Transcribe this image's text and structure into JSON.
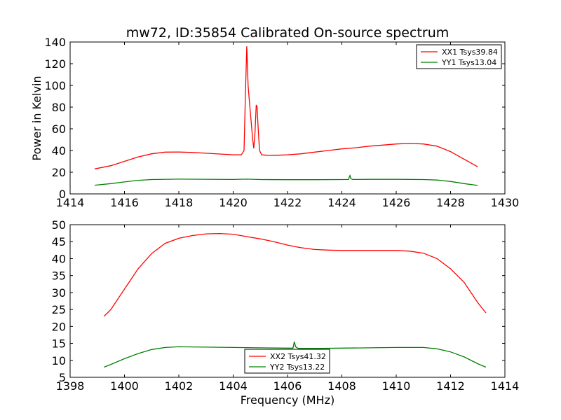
{
  "title": "mw72, ID:35854 Calibrated On-source spectrum",
  "colors": {
    "red": "#ff0000",
    "green": "#008000"
  },
  "chart_data": [
    {
      "type": "line",
      "ylabel": "Power in Kelvin",
      "xlabel": "",
      "xlim": [
        1414,
        1430
      ],
      "ylim": [
        0,
        140
      ],
      "xticks": [
        1414,
        1416,
        1418,
        1420,
        1422,
        1424,
        1426,
        1428,
        1430
      ],
      "yticks": [
        0,
        20,
        40,
        60,
        80,
        100,
        120,
        140
      ],
      "legend_position": "top-right",
      "series": [
        {
          "name": "XX1 Tsys39.84",
          "color": "red",
          "points": [
            [
              1414.9,
              23
            ],
            [
              1415.5,
              26
            ],
            [
              1416,
              30
            ],
            [
              1416.5,
              34
            ],
            [
              1417,
              37
            ],
            [
              1417.5,
              38.5
            ],
            [
              1418,
              38.6
            ],
            [
              1418.5,
              38.2
            ],
            [
              1419,
              37.5
            ],
            [
              1419.5,
              36.8
            ],
            [
              1420,
              36
            ],
            [
              1420.3,
              36
            ],
            [
              1420.4,
              40
            ],
            [
              1420.45,
              90
            ],
            [
              1420.5,
              136
            ],
            [
              1420.55,
              100
            ],
            [
              1420.6,
              85
            ],
            [
              1420.65,
              70
            ],
            [
              1420.72,
              50
            ],
            [
              1420.76,
              42
            ],
            [
              1420.8,
              55
            ],
            [
              1420.85,
              82
            ],
            [
              1420.88,
              80
            ],
            [
              1420.92,
              60
            ],
            [
              1420.97,
              40
            ],
            [
              1421.05,
              36
            ],
            [
              1421.3,
              35.5
            ],
            [
              1421.6,
              35.6
            ],
            [
              1422,
              36
            ],
            [
              1422.5,
              37
            ],
            [
              1423,
              38.5
            ],
            [
              1423.5,
              40
            ],
            [
              1424,
              41.5
            ],
            [
              1424.5,
              42.5
            ],
            [
              1425,
              44
            ],
            [
              1425.5,
              45
            ],
            [
              1426,
              46
            ],
            [
              1426.5,
              46.5
            ],
            [
              1427,
              46
            ],
            [
              1427.5,
              44
            ],
            [
              1428,
              39
            ],
            [
              1428.5,
              32
            ],
            [
              1429,
              25
            ]
          ]
        },
        {
          "name": "YY1 Tsys13.04",
          "color": "green",
          "points": [
            [
              1414.9,
              8
            ],
            [
              1415.5,
              9.5
            ],
            [
              1416,
              11
            ],
            [
              1416.5,
              12.5
            ],
            [
              1417,
              13.2
            ],
            [
              1418,
              13.6
            ],
            [
              1419,
              13.5
            ],
            [
              1420,
              13.3
            ],
            [
              1420.5,
              13.6
            ],
            [
              1421,
              13.2
            ],
            [
              1422,
              13.1
            ],
            [
              1423,
              13.1
            ],
            [
              1424,
              13.2
            ],
            [
              1424.25,
              13.3
            ],
            [
              1424.28,
              16
            ],
            [
              1424.3,
              17
            ],
            [
              1424.33,
              14
            ],
            [
              1424.4,
              13.3
            ],
            [
              1425,
              13.4
            ],
            [
              1426,
              13.4
            ],
            [
              1427,
              13.2
            ],
            [
              1427.5,
              12.8
            ],
            [
              1428,
              11.5
            ],
            [
              1428.5,
              9.5
            ],
            [
              1429,
              7.8
            ]
          ]
        }
      ]
    },
    {
      "type": "line",
      "xlabel": "Frequency (MHz)",
      "ylabel": "",
      "xlim": [
        1398,
        1414
      ],
      "ylim": [
        5,
        50
      ],
      "xticks": [
        1398,
        1400,
        1402,
        1404,
        1406,
        1408,
        1410,
        1412,
        1414
      ],
      "yticks": [
        5,
        10,
        15,
        20,
        25,
        30,
        35,
        40,
        45,
        50
      ],
      "legend_position": "lower-center",
      "series": [
        {
          "name": "XX2 Tsys41.32",
          "color": "red",
          "points": [
            [
              1399.25,
              23
            ],
            [
              1399.5,
              25
            ],
            [
              1400,
              31
            ],
            [
              1400.5,
              37
            ],
            [
              1401,
              41.5
            ],
            [
              1401.5,
              44.5
            ],
            [
              1402,
              46
            ],
            [
              1402.5,
              46.8
            ],
            [
              1403,
              47.3
            ],
            [
              1403.5,
              47.4
            ],
            [
              1404,
              47.2
            ],
            [
              1404.5,
              46.5
            ],
            [
              1405,
              45.8
            ],
            [
              1405.5,
              45
            ],
            [
              1406,
              44
            ],
            [
              1406.3,
              43.5
            ],
            [
              1406.5,
              43.2
            ],
            [
              1407,
              42.7
            ],
            [
              1407.5,
              42.5
            ],
            [
              1408,
              42.4
            ],
            [
              1409,
              42.4
            ],
            [
              1410,
              42.4
            ],
            [
              1410.5,
              42.2
            ],
            [
              1411,
              41.6
            ],
            [
              1411.5,
              40
            ],
            [
              1412,
              37
            ],
            [
              1412.5,
              33
            ],
            [
              1413,
              27
            ],
            [
              1413.3,
              24
            ]
          ]
        },
        {
          "name": "YY2 Tsys13.22",
          "color": "green",
          "points": [
            [
              1399.25,
              8
            ],
            [
              1399.5,
              8.8
            ],
            [
              1400,
              10.5
            ],
            [
              1400.5,
              12
            ],
            [
              1401,
              13.2
            ],
            [
              1401.5,
              13.8
            ],
            [
              1402,
              14
            ],
            [
              1403,
              13.9
            ],
            [
              1404,
              13.8
            ],
            [
              1405,
              13.7
            ],
            [
              1406,
              13.6
            ],
            [
              1406.2,
              13.6
            ],
            [
              1406.25,
              15.5
            ],
            [
              1406.3,
              14
            ],
            [
              1406.4,
              13.5
            ],
            [
              1407,
              13.5
            ],
            [
              1408,
              13.6
            ],
            [
              1409,
              13.7
            ],
            [
              1410,
              13.8
            ],
            [
              1411,
              13.8
            ],
            [
              1411.5,
              13.4
            ],
            [
              1412,
              12.5
            ],
            [
              1412.5,
              11
            ],
            [
              1413,
              9
            ],
            [
              1413.3,
              8
            ]
          ]
        }
      ]
    }
  ]
}
